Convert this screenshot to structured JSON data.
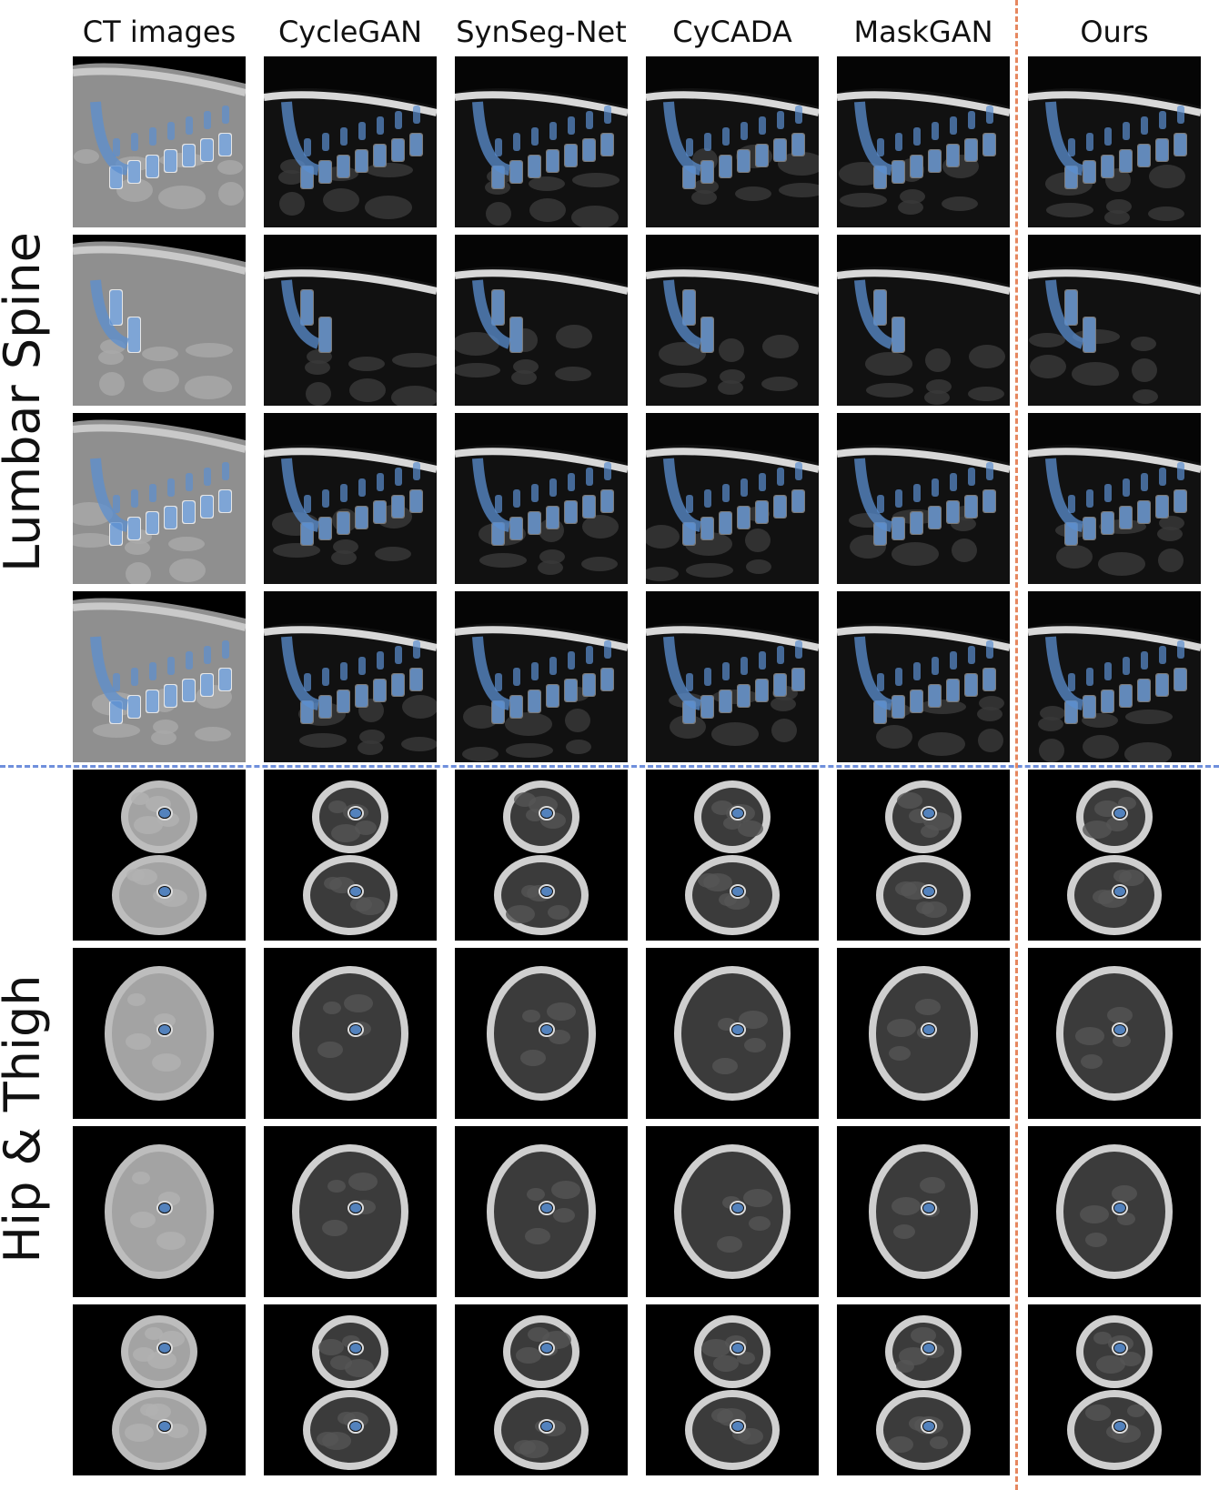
{
  "columns": [
    "CT images",
    "CycleGAN",
    "SynSeg-Net",
    "CyCADA",
    "MaskGAN",
    "Ours"
  ],
  "groups": [
    {
      "label": "Lumbar Spine",
      "type": "spine"
    },
    {
      "label": "Hip & Thigh",
      "type": "thigh"
    }
  ],
  "colors": {
    "mask": "#5b8fd0",
    "divider_h": "#6f8fdc",
    "divider_v": "#e6875f"
  },
  "rows_per_group": 4
}
